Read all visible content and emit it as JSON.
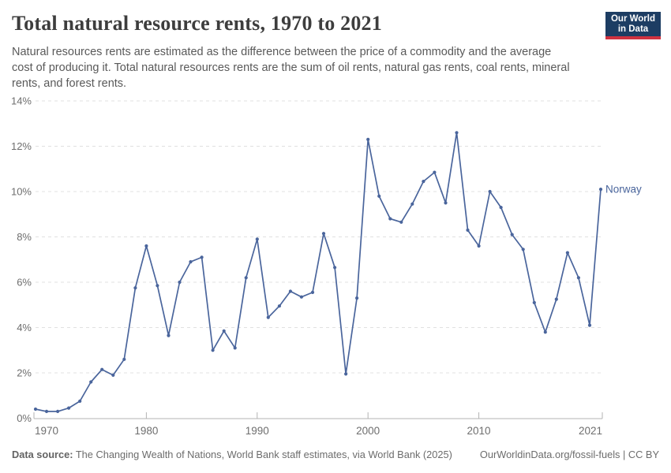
{
  "header": {
    "title": "Total natural resource rents, 1970 to 2021",
    "subtitle_lines": [
      "Natural resources rents are estimated as the difference between the price of a commodity and the average",
      "cost of producing it. Total natural resources rents are the sum of oil rents, natural gas rents, coal rents, mineral",
      "rents, and forest rents."
    ],
    "logo": {
      "line1": "Our World",
      "line2": "in Data",
      "bg_color": "#1d3d63",
      "bar_color": "#d03240"
    }
  },
  "chart_data": {
    "type": "line",
    "title": "Total natural resource rents, 1970 to 2021",
    "xlabel": "",
    "ylabel": "",
    "unit": "%",
    "ylim": [
      0,
      14
    ],
    "y_tick_step": 2,
    "y_tick_labels": [
      "0%",
      "2%",
      "4%",
      "6%",
      "8%",
      "10%",
      "12%",
      "14%"
    ],
    "x_tick_labels": [
      "1970",
      "1980",
      "1990",
      "2000",
      "2010",
      "2021"
    ],
    "x_ticks": [
      1970,
      1980,
      1990,
      2000,
      2010,
      2021
    ],
    "grid": "horizontal-dashed",
    "legend_position": "line-end-label",
    "x": [
      1970,
      1971,
      1972,
      1973,
      1974,
      1975,
      1976,
      1977,
      1978,
      1979,
      1980,
      1981,
      1982,
      1983,
      1984,
      1985,
      1986,
      1987,
      1988,
      1989,
      1990,
      1991,
      1992,
      1993,
      1994,
      1995,
      1996,
      1997,
      1998,
      1999,
      2000,
      2001,
      2002,
      2003,
      2004,
      2005,
      2006,
      2007,
      2008,
      2009,
      2010,
      2011,
      2012,
      2013,
      2014,
      2015,
      2016,
      2017,
      2018,
      2019,
      2020,
      2021
    ],
    "series": [
      {
        "name": "Norway",
        "color": "#4a659c",
        "values": [
          0.4,
          0.3,
          0.3,
          0.45,
          0.75,
          1.6,
          2.15,
          1.9,
          2.6,
          5.75,
          7.6,
          5.85,
          3.65,
          6.0,
          6.9,
          7.1,
          3.0,
          3.85,
          3.1,
          6.2,
          7.9,
          4.45,
          4.95,
          5.6,
          5.35,
          5.55,
          8.15,
          6.65,
          1.95,
          5.3,
          12.3,
          9.8,
          8.8,
          8.65,
          9.45,
          10.45,
          10.85,
          9.5,
          12.6,
          8.3,
          7.6,
          10.0,
          9.3,
          8.1,
          7.45,
          5.1,
          3.8,
          5.25,
          7.3,
          6.2,
          4.1,
          10.1
        ]
      }
    ]
  },
  "footer": {
    "datasource_label": "Data source:",
    "datasource_text": " The Changing Wealth of Nations, World Bank staff estimates, via World Bank (2025)",
    "link_text": "OurWorldinData.org/fossil-fuels | CC BY"
  },
  "colors": {
    "line": "#4a659c",
    "gridline": "#e0e0e0",
    "axis": "#b3b3b3",
    "y_tick_text": "#6e6e6e",
    "x_tick_text": "#6e6e6e",
    "title_text": "#3d3d3d",
    "subtitle_text": "#595959",
    "footer_text": "#6c6c6c"
  }
}
